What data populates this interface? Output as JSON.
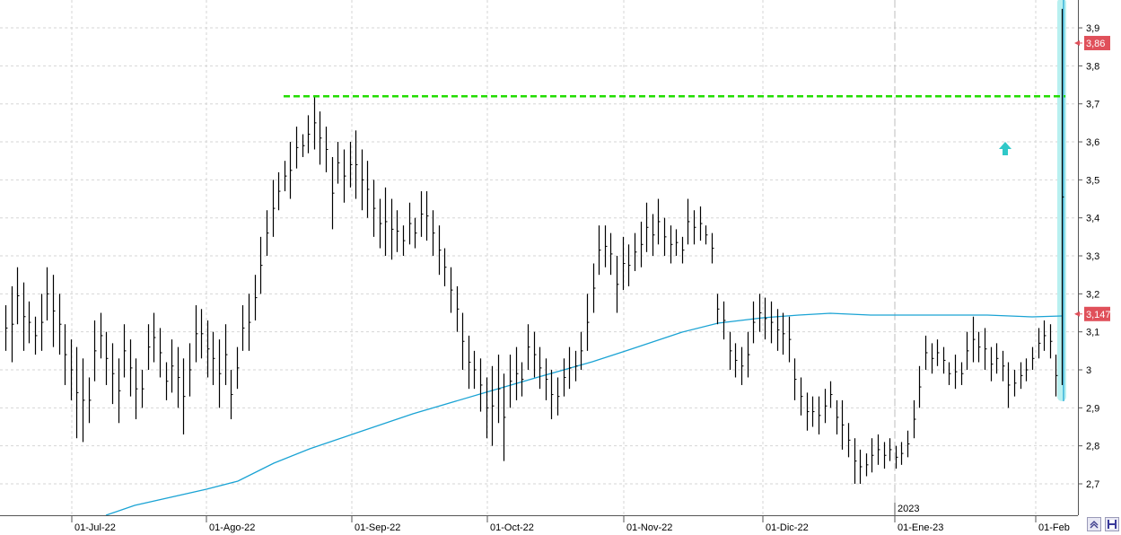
{
  "chart_data": {
    "type": "ohlc",
    "title": "",
    "xlabel": "",
    "ylabel": "",
    "ylim": [
      2.63,
      3.98
    ],
    "y_ticks": [
      "2,7",
      "2,8",
      "2,9",
      "3",
      "3,1",
      "3,2",
      "3,3",
      "3,4",
      "3,5",
      "3,6",
      "3,7",
      "3,8",
      "3,9"
    ],
    "x_ticks": [
      "01-Jul-22",
      "01-Ago-22",
      "01-Sep-22",
      "01-Oct-22",
      "01-Nov-22",
      "01-Dic-22",
      "01-Ene-23",
      "01-Feb"
    ],
    "year_marker": "2023",
    "grid": true,
    "last_price_label": "3,86",
    "moving_average_label": "3,147",
    "resistance_level": 3.72,
    "colors": {
      "bars": "#000000",
      "moving_average": "#1aa3d4",
      "resistance": "#22dd00",
      "badge": "#e0505a",
      "highlight": "#b8f0f0",
      "arrow": "#30c8c8"
    },
    "price_bars": [
      [
        3.17,
        3.05
      ],
      [
        3.22,
        3.02
      ],
      [
        3.27,
        3.12
      ],
      [
        3.23,
        3.05
      ],
      [
        3.18,
        3.07
      ],
      [
        3.14,
        3.04
      ],
      [
        3.2,
        3.05
      ],
      [
        3.27,
        3.13
      ],
      [
        3.25,
        3.06
      ],
      [
        3.2,
        3.04
      ],
      [
        3.12,
        2.96
      ],
      [
        3.08,
        2.92
      ],
      [
        3.06,
        2.82
      ],
      [
        3.03,
        2.81
      ],
      [
        2.98,
        2.86
      ],
      [
        3.13,
        2.97
      ],
      [
        3.15,
        3.03
      ],
      [
        3.1,
        2.96
      ],
      [
        3.07,
        2.91
      ],
      [
        3.03,
        2.86
      ],
      [
        3.12,
        2.98
      ],
      [
        3.08,
        2.93
      ],
      [
        3.03,
        2.87
      ],
      [
        3.0,
        2.9
      ],
      [
        3.12,
        3.0
      ],
      [
        3.15,
        3.02
      ],
      [
        3.11,
        2.98
      ],
      [
        3.02,
        2.92
      ],
      [
        3.08,
        2.94
      ],
      [
        3.06,
        2.9
      ],
      [
        3.03,
        2.83
      ],
      [
        3.07,
        2.93
      ],
      [
        3.17,
        3.02
      ],
      [
        3.16,
        3.03
      ],
      [
        3.13,
        2.98
      ],
      [
        3.1,
        2.96
      ],
      [
        3.08,
        2.9
      ],
      [
        3.12,
        2.96
      ],
      [
        3.0,
        2.87
      ],
      [
        3.06,
        2.95
      ],
      [
        3.17,
        3.05
      ],
      [
        3.2,
        3.05
      ],
      [
        3.25,
        3.13
      ],
      [
        3.35,
        3.2
      ],
      [
        3.42,
        3.3
      ],
      [
        3.5,
        3.35
      ],
      [
        3.52,
        3.42
      ],
      [
        3.55,
        3.47
      ],
      [
        3.6,
        3.45
      ],
      [
        3.64,
        3.53
      ],
      [
        3.62,
        3.56
      ],
      [
        3.67,
        3.57
      ],
      [
        3.72,
        3.58
      ],
      [
        3.68,
        3.54
      ],
      [
        3.64,
        3.52
      ],
      [
        3.56,
        3.37
      ],
      [
        3.6,
        3.49
      ],
      [
        3.58,
        3.44
      ],
      [
        3.6,
        3.48
      ],
      [
        3.63,
        3.45
      ],
      [
        3.58,
        3.42
      ],
      [
        3.55,
        3.4
      ],
      [
        3.5,
        3.35
      ],
      [
        3.45,
        3.32
      ],
      [
        3.48,
        3.3
      ],
      [
        3.45,
        3.29
      ],
      [
        3.42,
        3.31
      ],
      [
        3.38,
        3.3
      ],
      [
        3.44,
        3.33
      ],
      [
        3.4,
        3.32
      ],
      [
        3.47,
        3.35
      ],
      [
        3.47,
        3.34
      ],
      [
        3.42,
        3.3
      ],
      [
        3.38,
        3.25
      ],
      [
        3.32,
        3.22
      ],
      [
        3.27,
        3.15
      ],
      [
        3.22,
        3.1
      ],
      [
        3.15,
        3.0
      ],
      [
        3.09,
        2.95
      ],
      [
        3.05,
        2.95
      ],
      [
        3.03,
        2.89
      ],
      [
        2.98,
        2.82
      ],
      [
        3.01,
        2.8
      ],
      [
        3.04,
        2.86
      ],
      [
        2.99,
        2.76
      ],
      [
        3.04,
        2.9
      ],
      [
        3.06,
        2.92
      ],
      [
        3.02,
        2.93
      ],
      [
        3.12,
        3.0
      ],
      [
        3.1,
        2.98
      ],
      [
        3.06,
        2.95
      ],
      [
        3.03,
        2.92
      ],
      [
        3.0,
        2.87
      ],
      [
        2.98,
        2.88
      ],
      [
        3.03,
        2.93
      ],
      [
        3.06,
        2.95
      ],
      [
        3.05,
        2.97
      ],
      [
        3.1,
        3.0
      ],
      [
        3.2,
        3.05
      ],
      [
        3.28,
        3.15
      ],
      [
        3.38,
        3.25
      ],
      [
        3.38,
        3.27
      ],
      [
        3.36,
        3.25
      ],
      [
        3.3,
        3.15
      ],
      [
        3.35,
        3.21
      ],
      [
        3.33,
        3.22
      ],
      [
        3.36,
        3.26
      ],
      [
        3.39,
        3.27
      ],
      [
        3.44,
        3.31
      ],
      [
        3.41,
        3.3
      ],
      [
        3.45,
        3.33
      ],
      [
        3.4,
        3.3
      ],
      [
        3.38,
        3.28
      ],
      [
        3.37,
        3.3
      ],
      [
        3.35,
        3.28
      ],
      [
        3.45,
        3.33
      ],
      [
        3.42,
        3.33
      ],
      [
        3.43,
        3.34
      ],
      [
        3.38,
        3.33
      ],
      [
        3.36,
        3.28
      ],
      [
        3.2,
        3.12
      ],
      [
        3.18,
        3.08
      ],
      [
        3.1,
        3.0
      ],
      [
        3.07,
        2.98
      ],
      [
        3.06,
        2.96
      ],
      [
        3.1,
        2.98
      ],
      [
        3.18,
        3.07
      ],
      [
        3.2,
        3.1
      ],
      [
        3.19,
        3.08
      ],
      [
        3.18,
        3.07
      ],
      [
        3.16,
        3.05
      ],
      [
        3.15,
        3.04
      ],
      [
        3.14,
        3.02
      ],
      [
        3.03,
        2.92
      ],
      [
        2.98,
        2.88
      ],
      [
        2.94,
        2.84
      ],
      [
        2.93,
        2.85
      ],
      [
        2.93,
        2.83
      ],
      [
        2.95,
        2.86
      ],
      [
        2.97,
        2.9
      ],
      [
        2.92,
        2.83
      ],
      [
        2.92,
        2.79
      ],
      [
        2.86,
        2.77
      ],
      [
        2.82,
        2.7
      ],
      [
        2.79,
        2.7
      ],
      [
        2.78,
        2.72
      ],
      [
        2.82,
        2.73
      ],
      [
        2.83,
        2.75
      ],
      [
        2.81,
        2.74
      ],
      [
        2.82,
        2.76
      ],
      [
        2.8,
        2.74
      ],
      [
        2.81,
        2.75
      ],
      [
        2.84,
        2.77
      ],
      [
        2.92,
        2.82
      ],
      [
        3.01,
        2.9
      ],
      [
        3.09,
        3.0
      ],
      [
        3.07,
        2.99
      ],
      [
        3.08,
        3.01
      ],
      [
        3.06,
        2.99
      ],
      [
        3.02,
        2.96
      ],
      [
        3.04,
        2.95
      ],
      [
        3.02,
        2.96
      ],
      [
        3.1,
        3.0
      ],
      [
        3.14,
        3.02
      ],
      [
        3.1,
        3.02
      ],
      [
        3.11,
        3.0
      ],
      [
        3.06,
        2.97
      ],
      [
        3.07,
        2.99
      ],
      [
        3.05,
        2.97
      ],
      [
        3.02,
        2.9
      ],
      [
        3.0,
        2.93
      ],
      [
        3.02,
        2.95
      ],
      [
        3.03,
        2.97
      ],
      [
        3.06,
        3.0
      ],
      [
        3.11,
        3.03
      ],
      [
        3.13,
        3.05
      ],
      [
        3.12,
        3.03
      ],
      [
        3.04,
        2.93
      ],
      [
        3.95,
        2.96
      ]
    ],
    "moving_average": {
      "x": [
        "01-Jul-22",
        "01-Ago-22",
        "01-Sep-22",
        "01-Oct-22",
        "01-Nov-22",
        "01-Dic-22",
        "01-Ene-23",
        "01-Feb"
      ],
      "y": [
        2.63,
        2.71,
        2.83,
        2.97,
        3.09,
        3.15,
        3.15,
        3.147
      ]
    }
  }
}
